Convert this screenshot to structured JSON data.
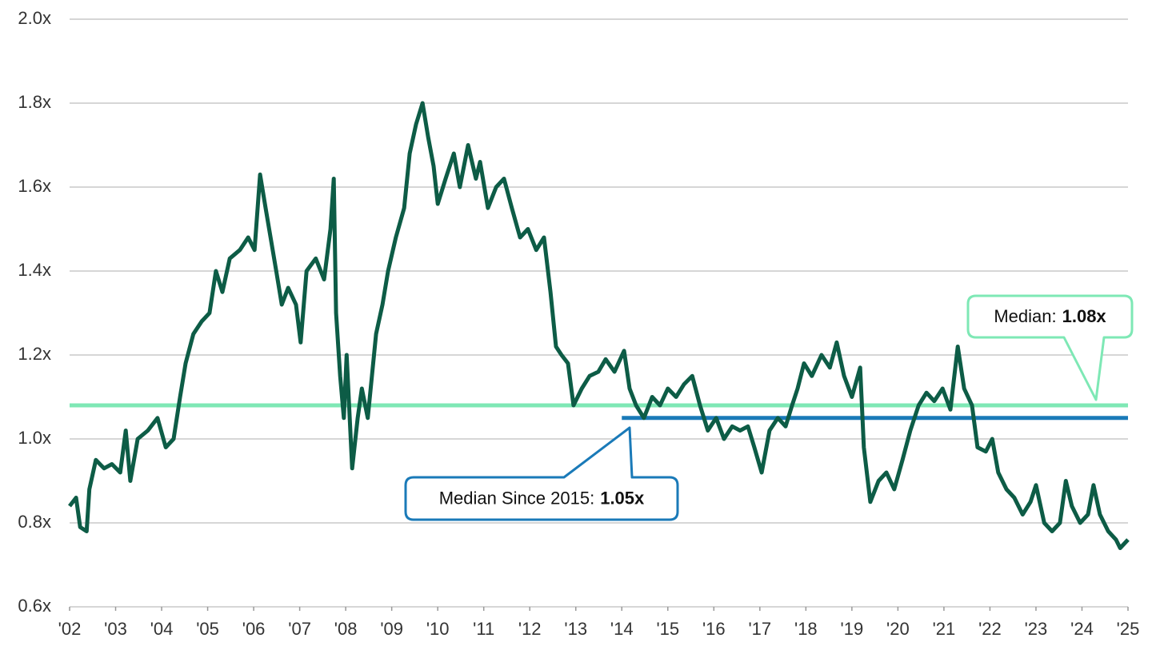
{
  "chart_data": {
    "type": "line",
    "color": "#0d5c46",
    "grid": true,
    "xlim": [
      2002,
      2025
    ],
    "ylim": [
      0.6,
      2.0
    ],
    "xticks": [
      {
        "value": 2002,
        "label": "'02"
      },
      {
        "value": 2003,
        "label": "'03"
      },
      {
        "value": 2004,
        "label": "'04"
      },
      {
        "value": 2005,
        "label": "'05"
      },
      {
        "value": 2006,
        "label": "'06"
      },
      {
        "value": 2007,
        "label": "'07"
      },
      {
        "value": 2008,
        "label": "'08"
      },
      {
        "value": 2009,
        "label": "'09"
      },
      {
        "value": 2010,
        "label": "'10"
      },
      {
        "value": 2011,
        "label": "'11"
      },
      {
        "value": 2012,
        "label": "'12"
      },
      {
        "value": 2013,
        "label": "'13"
      },
      {
        "value": 2014,
        "label": "'14"
      },
      {
        "value": 2015,
        "label": "'15"
      },
      {
        "value": 2016,
        "label": "'16"
      },
      {
        "value": 2017,
        "label": "'17"
      },
      {
        "value": 2018,
        "label": "'18"
      },
      {
        "value": 2019,
        "label": "'19"
      },
      {
        "value": 2020,
        "label": "'20"
      },
      {
        "value": 2021,
        "label": "'21"
      },
      {
        "value": 2022,
        "label": "'22"
      },
      {
        "value": 2023,
        "label": "'23"
      },
      {
        "value": 2024,
        "label": "'24"
      },
      {
        "value": 2025,
        "label": "'25"
      }
    ],
    "yticks": [
      {
        "value": 0.6,
        "label": "0.6x"
      },
      {
        "value": 0.8,
        "label": "0.8x"
      },
      {
        "value": 1.0,
        "label": "1.0x"
      },
      {
        "value": 1.2,
        "label": "1.2x"
      },
      {
        "value": 1.4,
        "label": "1.4x"
      },
      {
        "value": 1.6,
        "label": "1.6x"
      },
      {
        "value": 1.8,
        "label": "1.8x"
      },
      {
        "value": 2.0,
        "label": "2.0x"
      }
    ],
    "x": [
      2002.0,
      2002.14,
      2002.23,
      2002.37,
      2002.43,
      2002.57,
      2002.75,
      2002.92,
      2003.1,
      2003.22,
      2003.32,
      2003.48,
      2003.7,
      2003.91,
      2004.09,
      2004.26,
      2004.4,
      2004.52,
      2004.69,
      2004.87,
      2005.04,
      2005.18,
      2005.32,
      2005.48,
      2005.7,
      2005.88,
      2006.02,
      2006.14,
      2006.26,
      2006.49,
      2006.61,
      2006.75,
      2006.92,
      2007.02,
      2007.15,
      2007.35,
      2007.53,
      2007.67,
      2007.74,
      2007.79,
      2007.88,
      2007.96,
      2008.02,
      2008.14,
      2008.26,
      2008.35,
      2008.48,
      2008.57,
      2008.66,
      2008.8,
      2008.92,
      2009.09,
      2009.27,
      2009.39,
      2009.53,
      2009.67,
      2009.79,
      2009.91,
      2010.0,
      2010.17,
      2010.35,
      2010.48,
      2010.66,
      2010.83,
      2010.92,
      2011.09,
      2011.27,
      2011.44,
      2011.61,
      2011.79,
      2011.96,
      2012.14,
      2012.31,
      2012.45,
      2012.57,
      2012.69,
      2012.83,
      2012.95,
      2013.13,
      2013.3,
      2013.49,
      2013.65,
      2013.84,
      2014.05,
      2014.17,
      2014.31,
      2014.48,
      2014.66,
      2014.83,
      2015.0,
      2015.18,
      2015.35,
      2015.53,
      2015.7,
      2015.87,
      2016.05,
      2016.22,
      2016.4,
      2016.57,
      2016.74,
      2016.88,
      2017.04,
      2017.21,
      2017.39,
      2017.56,
      2017.7,
      2017.82,
      2017.96,
      2018.13,
      2018.34,
      2018.52,
      2018.67,
      2018.83,
      2019.0,
      2019.18,
      2019.26,
      2019.4,
      2019.58,
      2019.75,
      2019.92,
      2020.1,
      2020.27,
      2020.45,
      2020.62,
      2020.79,
      2020.97,
      2021.14,
      2021.3,
      2021.44,
      2021.61,
      2021.73,
      2021.91,
      2022.05,
      2022.18,
      2022.36,
      2022.53,
      2022.71,
      2022.88,
      2023.0,
      2023.18,
      2023.35,
      2023.52,
      2023.65,
      2023.78,
      2023.96,
      2024.13,
      2024.25,
      2024.39,
      2024.57,
      2024.74,
      2024.83,
      2025.0
    ],
    "values": [
      0.84,
      0.86,
      0.79,
      0.78,
      0.88,
      0.95,
      0.93,
      0.94,
      0.92,
      1.02,
      0.9,
      1.0,
      1.02,
      1.05,
      0.98,
      1.0,
      1.1,
      1.18,
      1.25,
      1.28,
      1.3,
      1.4,
      1.35,
      1.43,
      1.45,
      1.48,
      1.45,
      1.63,
      1.55,
      1.4,
      1.32,
      1.36,
      1.32,
      1.23,
      1.4,
      1.43,
      1.38,
      1.5,
      1.62,
      1.3,
      1.15,
      1.05,
      1.2,
      0.93,
      1.05,
      1.12,
      1.05,
      1.15,
      1.25,
      1.32,
      1.4,
      1.48,
      1.55,
      1.68,
      1.75,
      1.8,
      1.72,
      1.65,
      1.56,
      1.62,
      1.68,
      1.6,
      1.7,
      1.62,
      1.66,
      1.55,
      1.6,
      1.62,
      1.55,
      1.48,
      1.5,
      1.45,
      1.48,
      1.35,
      1.22,
      1.2,
      1.18,
      1.08,
      1.12,
      1.15,
      1.16,
      1.19,
      1.16,
      1.21,
      1.12,
      1.08,
      1.05,
      1.1,
      1.08,
      1.12,
      1.1,
      1.13,
      1.15,
      1.08,
      1.02,
      1.05,
      1.0,
      1.03,
      1.02,
      1.03,
      0.98,
      0.92,
      1.02,
      1.05,
      1.03,
      1.08,
      1.12,
      1.18,
      1.15,
      1.2,
      1.17,
      1.23,
      1.15,
      1.1,
      1.17,
      0.98,
      0.85,
      0.9,
      0.92,
      0.88,
      0.95,
      1.02,
      1.08,
      1.11,
      1.09,
      1.12,
      1.07,
      1.22,
      1.12,
      1.08,
      0.98,
      0.97,
      1.0,
      0.92,
      0.88,
      0.86,
      0.82,
      0.85,
      0.89,
      0.8,
      0.78,
      0.8,
      0.9,
      0.84,
      0.8,
      0.82,
      0.89,
      0.82,
      0.78,
      0.76,
      0.74,
      0.76
    ],
    "annotations": [
      {
        "label": "Median:",
        "value": 1.08,
        "value_label": "1.08x",
        "color": "#7ee8b5",
        "x_start": 2002
      },
      {
        "label": "Median Since 2015:",
        "value": 1.05,
        "value_label": "1.05x",
        "color": "#1a7ab8",
        "x_start": 2014
      }
    ]
  }
}
